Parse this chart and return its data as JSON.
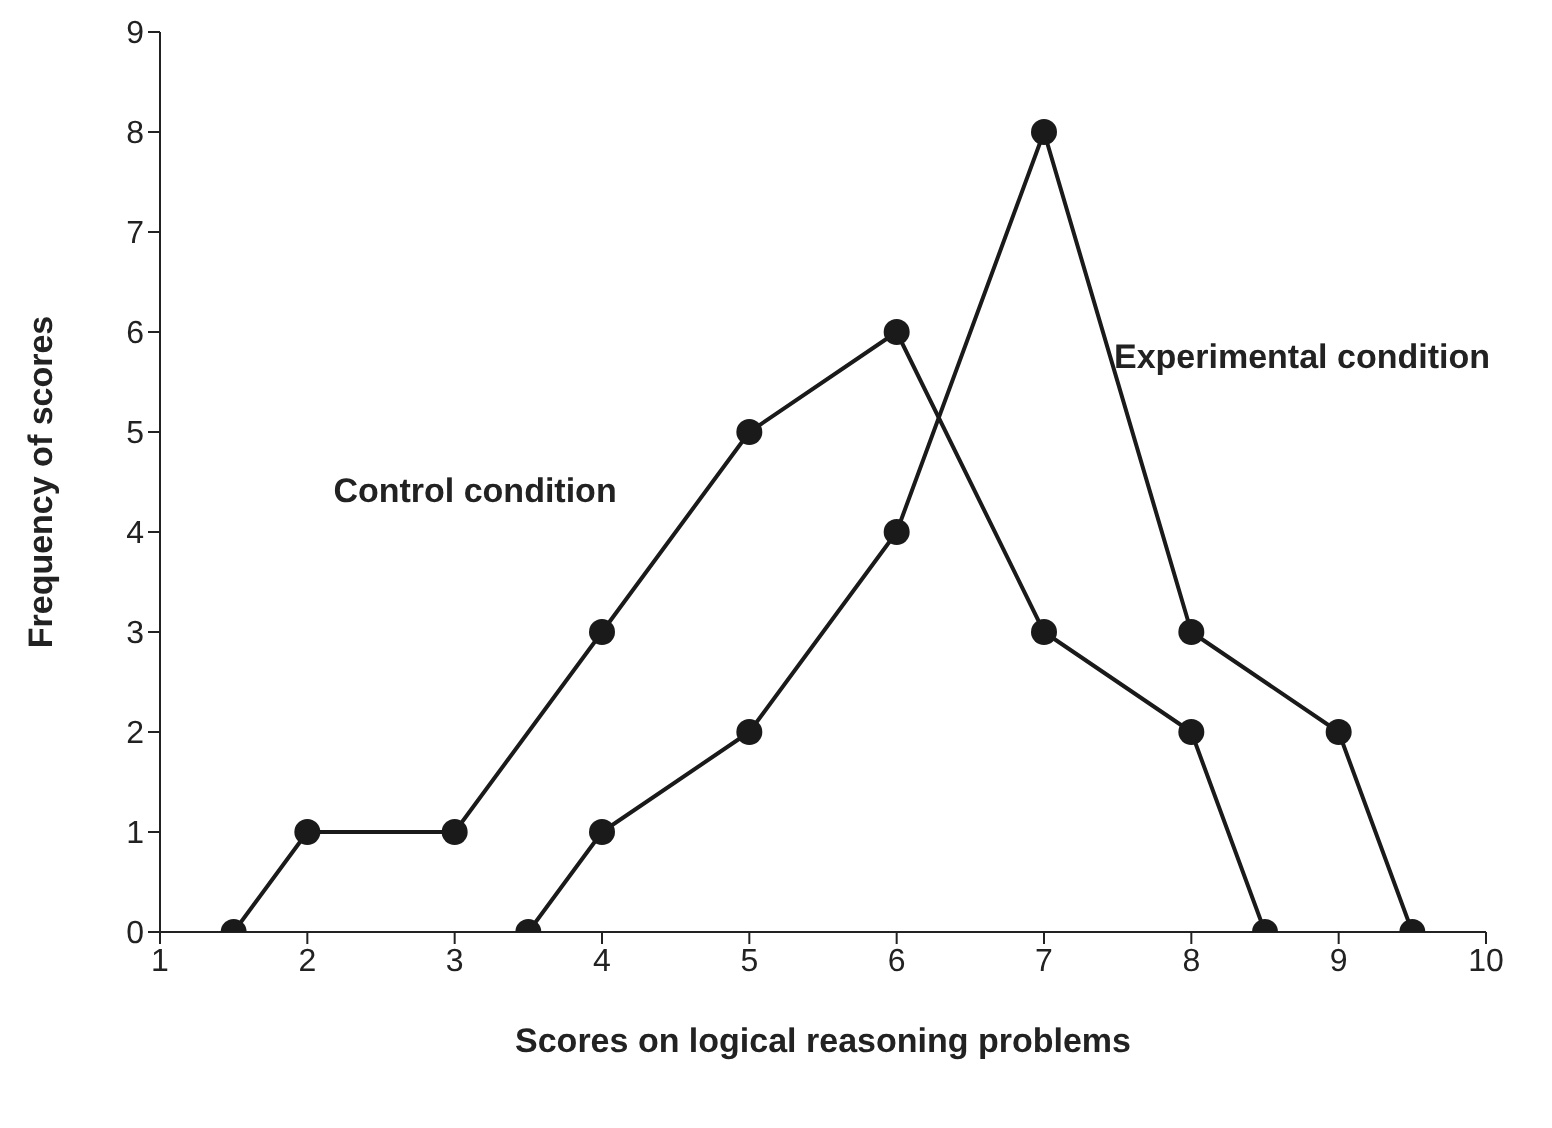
{
  "chart_data": {
    "type": "line",
    "xlabel": "Scores on logical reasoning problems",
    "ylabel": "Frequency of scores",
    "xlim": [
      1,
      10
    ],
    "xticks": [
      1,
      2,
      3,
      4,
      5,
      6,
      7,
      8,
      9,
      10
    ],
    "ylim": [
      0,
      9
    ],
    "yticks": [
      0,
      1,
      2,
      3,
      4,
      5,
      6,
      7,
      8,
      9
    ],
    "grid": false,
    "legend": false,
    "marker": "circle",
    "line_style": "solid",
    "series": [
      {
        "name": "Control condition",
        "color": "#1a1a1a",
        "x": [
          1.5,
          2,
          3,
          4,
          5,
          6,
          7,
          8,
          8.5
        ],
        "values": [
          0,
          1,
          1,
          3,
          5,
          6,
          3,
          2,
          0
        ]
      },
      {
        "name": "Experimental condition",
        "color": "#1a1a1a",
        "x": [
          3.5,
          4,
          5,
          6,
          7,
          8,
          9,
          9.5
        ],
        "values": [
          0,
          1,
          2,
          4,
          8,
          3,
          2,
          0
        ]
      }
    ]
  }
}
